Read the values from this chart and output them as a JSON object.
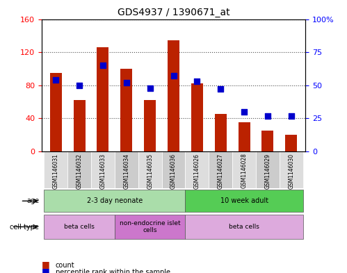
{
  "title": "GDS4937 / 1390671_at",
  "samples": [
    "GSM1146031",
    "GSM1146032",
    "GSM1146033",
    "GSM1146034",
    "GSM1146035",
    "GSM1146036",
    "GSM1146026",
    "GSM1146027",
    "GSM1146028",
    "GSM1146029",
    "GSM1146030"
  ],
  "counts": [
    95,
    62,
    126,
    100,
    62,
    134,
    82,
    45,
    35,
    25,
    20
  ],
  "percentiles": [
    54,
    50,
    65,
    52,
    48,
    57,
    53,
    47,
    30,
    27,
    27
  ],
  "left_ylim": [
    0,
    160
  ],
  "right_ylim": [
    0,
    100
  ],
  "left_yticks": [
    0,
    40,
    80,
    120,
    160
  ],
  "right_yticks": [
    0,
    25,
    50,
    75,
    100
  ],
  "right_yticklabels": [
    "0",
    "25",
    "50",
    "75",
    "100%"
  ],
  "bar_color": "#bb2200",
  "dot_color": "#0000cc",
  "age_groups": [
    {
      "label": "2-3 day neonate",
      "start": 0,
      "end": 6,
      "color": "#aaddaa"
    },
    {
      "label": "10 week adult",
      "start": 6,
      "end": 11,
      "color": "#55cc55"
    }
  ],
  "cell_types": [
    {
      "label": "beta cells",
      "start": 0,
      "end": 3,
      "color": "#ddaadd"
    },
    {
      "label": "non-endocrine islet\ncells",
      "start": 3,
      "end": 6,
      "color": "#cc77cc"
    },
    {
      "label": "beta cells",
      "start": 6,
      "end": 11,
      "color": "#ddaadd"
    }
  ],
  "legend_count_label": "count",
  "legend_pct_label": "percentile rank within the sample",
  "xlabel_color": "#888888",
  "grid_linestyle": "dotted",
  "grid_color": "black",
  "grid_alpha": 0.7
}
